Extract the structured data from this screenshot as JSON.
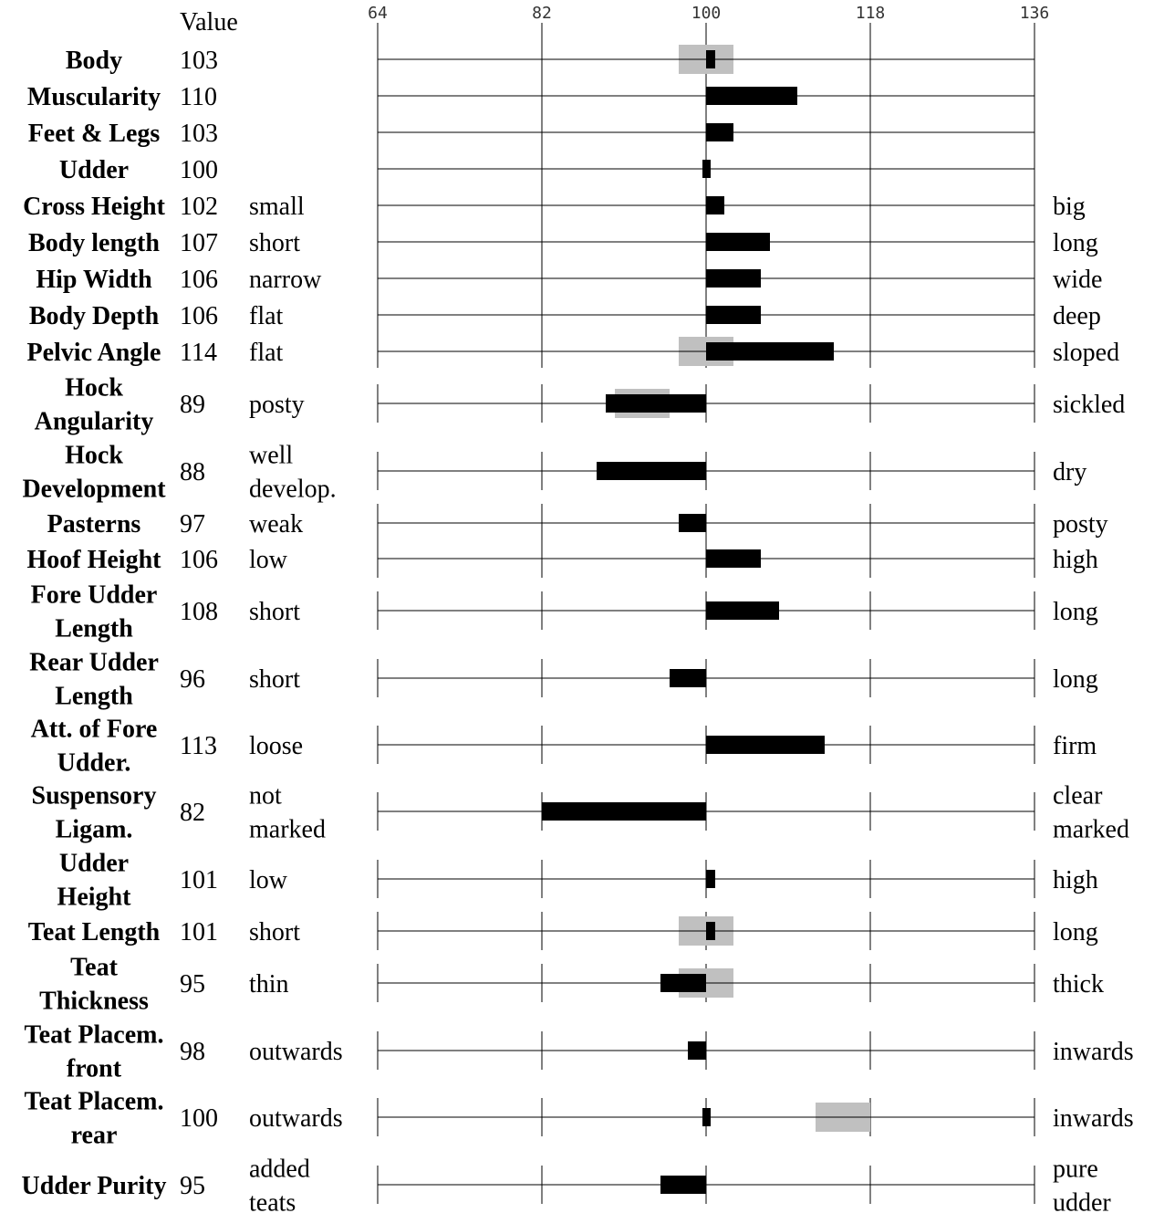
{
  "chart_data": {
    "type": "bar",
    "header": {
      "value_label": "Value"
    },
    "x_axis": {
      "min": 64,
      "max": 136,
      "ticks": [
        "64",
        "82",
        "100",
        "118",
        "136"
      ],
      "baseline": 100
    },
    "colors": {
      "bar": "#000000",
      "range": "#c0c0c0",
      "line": "#000000"
    },
    "rows": [
      {
        "name": "Body",
        "value": 103,
        "bar": 101,
        "range": [
          97,
          103
        ]
      },
      {
        "name": "Muscularity",
        "value": 110
      },
      {
        "name": "Feet & Legs",
        "value": 103
      },
      {
        "name": "Udder",
        "value": 100
      },
      {
        "name": "Cross Height",
        "value": 102,
        "low": "small",
        "high": "big"
      },
      {
        "name": "Body length",
        "value": 107,
        "low": "short",
        "high": "long"
      },
      {
        "name": "Hip Width",
        "value": 106,
        "low": "narrow",
        "high": "wide"
      },
      {
        "name": "Body Depth",
        "value": 106,
        "low": "flat",
        "high": "deep"
      },
      {
        "name": "Pelvic Angle",
        "value": 114,
        "low": "flat",
        "high": "sloped",
        "range": [
          97,
          103
        ]
      },
      {
        "name": "Hock Angularity",
        "value": 89,
        "low": "posty",
        "high": "sickled",
        "range": [
          90,
          96
        ]
      },
      {
        "name": "Hock Development",
        "value": 88,
        "low": "well develop.",
        "high": "dry"
      },
      {
        "name": "Pasterns",
        "value": 97,
        "low": "weak",
        "high": "posty"
      },
      {
        "name": "Hoof Height",
        "value": 106,
        "low": "low",
        "high": "high"
      },
      {
        "name": "Fore Udder Length",
        "value": 108,
        "low": "short",
        "high": "long"
      },
      {
        "name": "Rear Udder Length",
        "value": 96,
        "low": "short",
        "high": "long"
      },
      {
        "name": "Att. of Fore Udder.",
        "value": 113,
        "low": "loose",
        "high": "firm"
      },
      {
        "name": "Suspensory Ligam.",
        "value": 82,
        "low": "not marked",
        "high": "clear marked"
      },
      {
        "name": "Udder Height",
        "value": 101,
        "low": "low",
        "high": "high"
      },
      {
        "name": "Teat Length",
        "value": 101,
        "low": "short",
        "high": "long",
        "range": [
          97,
          103
        ]
      },
      {
        "name": "Teat Thickness",
        "value": 95,
        "low": "thin",
        "high": "thick",
        "range": [
          97,
          103
        ]
      },
      {
        "name": "Teat Placem. front",
        "value": 98,
        "low": "outwards",
        "high": "inwards"
      },
      {
        "name": "Teat Placem. rear",
        "value": 100,
        "low": "outwards",
        "high": "inwards",
        "range": [
          112,
          118
        ]
      },
      {
        "name": "Udder Purity",
        "value": 95,
        "low": "added teats",
        "high": "pure udder"
      }
    ]
  }
}
